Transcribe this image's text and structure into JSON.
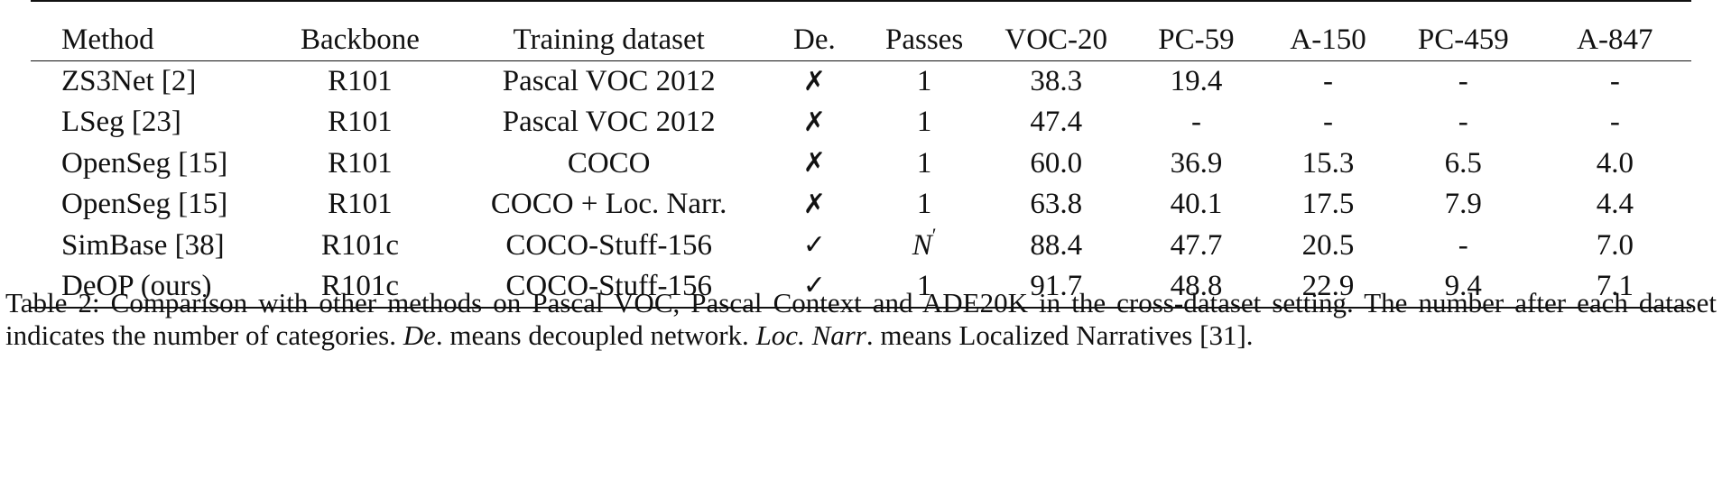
{
  "table": {
    "columns": [
      "Method",
      "Backbone",
      "Training dataset",
      "De.",
      "Passes",
      "VOC-20",
      "PC-59",
      "A-150",
      "PC-459",
      "A-847"
    ],
    "rows": [
      {
        "method": "ZS3Net [2]",
        "backbone": "R101",
        "dataset": "Pascal VOC 2012",
        "de": "✗",
        "passes": "1",
        "voc20": "38.3",
        "pc59": "19.4",
        "a150": "-",
        "pc459": "-",
        "a847": "-"
      },
      {
        "method": "LSeg [23]",
        "backbone": "R101",
        "dataset": "Pascal VOC 2012",
        "de": "✗",
        "passes": "1",
        "voc20": "47.4",
        "pc59": "-",
        "a150": "-",
        "pc459": "-",
        "a847": "-"
      },
      {
        "method": "OpenSeg [15]",
        "backbone": "R101",
        "dataset": "COCO",
        "de": "✗",
        "passes": "1",
        "voc20": "60.0",
        "pc59": "36.9",
        "a150": "15.3",
        "pc459": "6.5",
        "a847": "4.0"
      },
      {
        "method": "OpenSeg [15]",
        "backbone": "R101",
        "dataset": "COCO + Loc. Narr.",
        "de": "✗",
        "passes": "1",
        "voc20": "63.8",
        "pc59": "40.1",
        "a150": "17.5",
        "pc459": "7.9",
        "a847": "4.4"
      },
      {
        "method": "SimBase [38]",
        "backbone": "R101c",
        "dataset": "COCO-Stuff-156",
        "de": "✓",
        "passes_base": "N",
        "passes_sup": "′",
        "voc20": "88.4",
        "pc59": "47.7",
        "a150": "20.5",
        "pc459": "-",
        "a847": "7.0"
      },
      {
        "method": "DeOP (ours)",
        "backbone": "R101c",
        "dataset": "COCO-Stuff-156",
        "de": "✓",
        "passes": "1",
        "voc20": "91.7",
        "pc59": "48.8",
        "a150": "22.9",
        "pc459": "9.4",
        "a847": "7.1"
      }
    ]
  },
  "caption": {
    "part1": "Table 2: Comparison with other methods on Pascal VOC, Pascal Context and ADE20K in the cross-dataset setting. The number after each dataset indicates the number of categories. ",
    "de_term": "De",
    "part2": ". means decoupled network. ",
    "locnarr_term": "Loc. Narr",
    "part3": ". means Localized Narratives [31]."
  }
}
